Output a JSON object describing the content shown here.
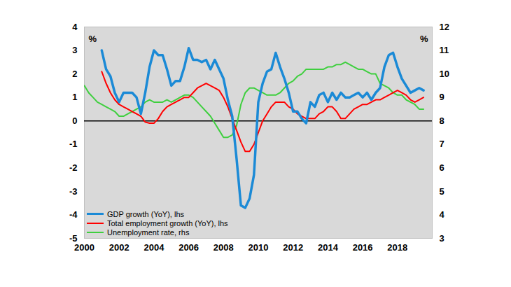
{
  "chart_data": {
    "type": "line",
    "ylabel": "%",
    "y2label": "%",
    "x": [
      2000,
      2000.25,
      2000.5,
      2000.75,
      2001,
      2001.25,
      2001.5,
      2001.75,
      2002,
      2002.25,
      2002.5,
      2002.75,
      2003,
      2003.25,
      2003.5,
      2003.75,
      2004,
      2004.25,
      2004.5,
      2004.75,
      2005,
      2005.25,
      2005.5,
      2005.75,
      2006,
      2006.25,
      2006.5,
      2006.75,
      2007,
      2007.25,
      2007.5,
      2007.75,
      2008,
      2008.25,
      2008.5,
      2008.75,
      2009,
      2009.25,
      2009.5,
      2009.75,
      2010,
      2010.25,
      2010.5,
      2010.75,
      2011,
      2011.25,
      2011.5,
      2011.75,
      2012,
      2012.25,
      2012.5,
      2012.75,
      2013,
      2013.25,
      2013.5,
      2013.75,
      2014,
      2014.25,
      2014.5,
      2014.75,
      2015,
      2015.25,
      2015.5,
      2015.75,
      2016,
      2016.25,
      2016.5,
      2016.75,
      2017,
      2017.25,
      2017.5,
      2017.75,
      2018,
      2018.25,
      2018.5,
      2018.75,
      2019,
      2019.25,
      2019.5
    ],
    "series": [
      {
        "name": "GDP growth (YoY), lhs",
        "color": "#1b8ad6",
        "values": [
          null,
          null,
          null,
          null,
          3.0,
          2.2,
          1.9,
          1.2,
          0.8,
          1.2,
          1.2,
          1.2,
          1.0,
          0.3,
          1.2,
          2.3,
          3.0,
          2.8,
          2.8,
          2.2,
          1.5,
          1.7,
          1.7,
          2.3,
          3.1,
          2.6,
          2.6,
          2.5,
          2.6,
          2.2,
          2.6,
          2.2,
          1.8,
          0.9,
          0.2,
          -1.6,
          -3.6,
          -3.7,
          -3.3,
          -2.3,
          0.8,
          1.6,
          2.1,
          2.2,
          2.9,
          2.3,
          1.8,
          1.2,
          0.4,
          0.4,
          0.1,
          -0.1,
          0.8,
          0.6,
          1.1,
          1.2,
          0.8,
          1.2,
          0.9,
          1.2,
          1.0,
          1.0,
          1.1,
          1.2,
          1.0,
          1.2,
          0.9,
          1.2,
          1.4,
          2.3,
          2.8,
          2.9,
          2.3,
          1.8,
          1.5,
          1.2,
          1.3,
          1.4,
          1.3
        ]
      },
      {
        "name": "Total employment growth (YoY), lhs",
        "color": "#ff0000",
        "values": [
          null,
          null,
          null,
          null,
          2.1,
          1.6,
          1.2,
          0.9,
          0.7,
          0.6,
          0.5,
          0.4,
          0.3,
          0.2,
          -0.05,
          -0.1,
          -0.1,
          0.1,
          0.4,
          0.6,
          0.7,
          0.8,
          0.9,
          1.0,
          1.0,
          1.2,
          1.4,
          1.5,
          1.6,
          1.5,
          1.4,
          1.3,
          1.0,
          0.6,
          0.1,
          -0.4,
          -0.9,
          -1.3,
          -1.3,
          -1.0,
          -0.5,
          0.0,
          0.3,
          0.6,
          0.8,
          0.8,
          0.8,
          0.6,
          0.5,
          0.3,
          0.2,
          0.1,
          0.1,
          0.1,
          0.3,
          0.4,
          0.6,
          0.6,
          0.4,
          0.1,
          0.1,
          0.3,
          0.5,
          0.6,
          0.7,
          0.7,
          0.8,
          0.9,
          0.9,
          1.0,
          1.1,
          1.2,
          1.3,
          1.2,
          1.1,
          0.9,
          0.8,
          0.9,
          1.0
        ]
      },
      {
        "name": "Unemployment rate, rhs",
        "color": "#3fcf3f",
        "axis": "y2",
        "values": [
          9.5,
          9.2,
          9.0,
          8.8,
          8.7,
          8.6,
          8.5,
          8.4,
          8.2,
          8.2,
          8.3,
          8.4,
          8.5,
          8.6,
          8.8,
          8.9,
          8.8,
          8.8,
          8.8,
          8.9,
          8.8,
          8.9,
          9.0,
          9.1,
          9.1,
          9.0,
          8.8,
          8.6,
          8.4,
          8.2,
          7.9,
          7.6,
          7.3,
          7.3,
          7.4,
          7.8,
          8.7,
          9.2,
          9.4,
          9.4,
          9.3,
          9.2,
          9.1,
          9.1,
          9.1,
          9.2,
          9.4,
          9.6,
          9.7,
          9.9,
          10.0,
          10.2,
          10.2,
          10.2,
          10.2,
          10.2,
          10.3,
          10.3,
          10.4,
          10.4,
          10.5,
          10.4,
          10.3,
          10.2,
          10.2,
          10.1,
          10.0,
          10.0,
          9.6,
          9.5,
          9.4,
          9.2,
          9.1,
          9.1,
          8.9,
          8.8,
          8.7,
          8.5,
          8.5
        ]
      }
    ],
    "xlim": [
      2000,
      2020
    ],
    "xticks": [
      2000,
      2002,
      2004,
      2006,
      2008,
      2010,
      2012,
      2014,
      2016,
      2018
    ],
    "ylim": [
      -5,
      4
    ],
    "yticks": [
      -5,
      -4,
      -3,
      -2,
      -1,
      0,
      1,
      2,
      3,
      4
    ],
    "y2lim": [
      3,
      12
    ],
    "y2ticks": [
      3,
      4,
      5,
      6,
      7,
      8,
      9,
      10,
      11,
      12
    ],
    "grid": false,
    "legend": "lower left"
  }
}
